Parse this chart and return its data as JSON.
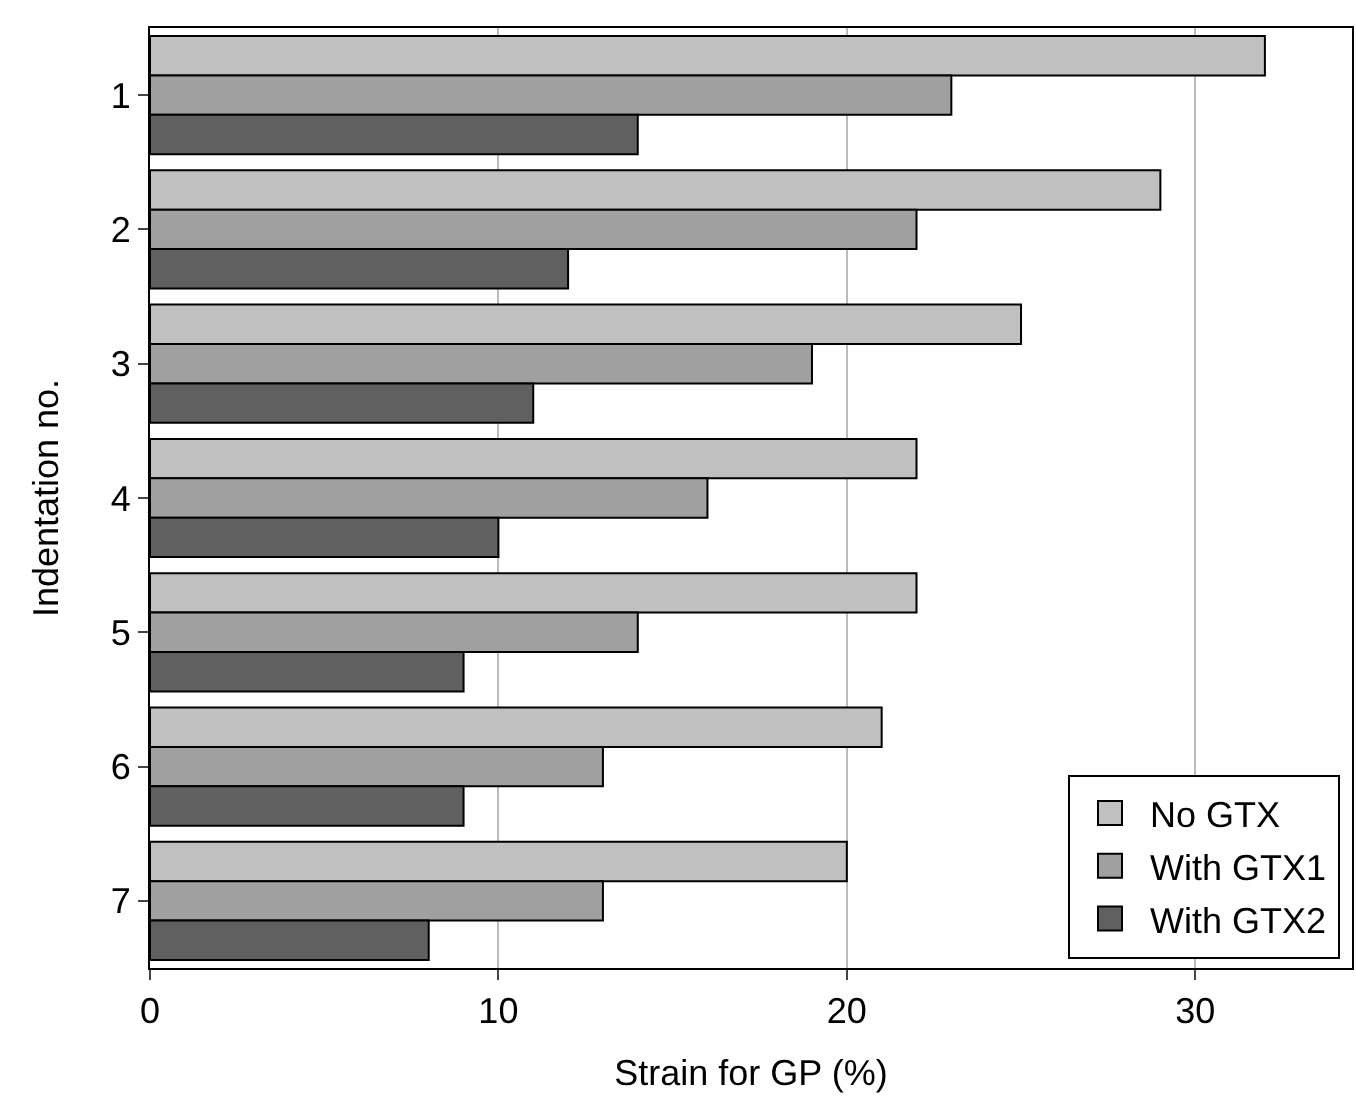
{
  "chart_data": {
    "type": "bar",
    "orientation": "horizontal",
    "xlabel": "Strain for GP (%)",
    "ylabel": "Indentation no.",
    "categories": [
      "1",
      "2",
      "3",
      "4",
      "5",
      "6",
      "7"
    ],
    "series": [
      {
        "name": "No GTX",
        "color": "#c0c0c0",
        "values": [
          32,
          29,
          25,
          22,
          22,
          21,
          20
        ]
      },
      {
        "name": "With GTX1",
        "color": "#a0a0a0",
        "values": [
          23,
          22,
          19,
          16,
          14,
          13,
          13
        ]
      },
      {
        "name": "With GTX2",
        "color": "#606060",
        "values": [
          14,
          12,
          11,
          10,
          9,
          9,
          8
        ]
      }
    ],
    "xlim": [
      0,
      34.5
    ],
    "xticks": [
      0,
      10,
      20,
      30
    ],
    "grid": "x",
    "legend": "bottom right"
  }
}
